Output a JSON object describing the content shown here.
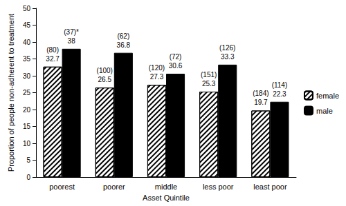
{
  "chart_data": {
    "type": "bar",
    "x_label": "Asset Quintile",
    "y_label": "Proportion of people non-adherent to treatment",
    "categories": [
      "poorest",
      "poorer",
      "middle",
      "less poor",
      "least poor"
    ],
    "series": [
      {
        "name": "female",
        "color": "#ffffff",
        "values": [
          32.7,
          26.5,
          27.3,
          25.3,
          19.7
        ],
        "count_labels": [
          "(80)",
          "(100)",
          "(120)",
          "(151)",
          "(184)"
        ]
      },
      {
        "name": "male",
        "color": "#000000",
        "values": [
          38,
          36.8,
          30.6,
          33.3,
          22.3
        ],
        "count_labels": [
          "(37)*",
          "(62)",
          "(72)",
          "(126)",
          "(114)"
        ]
      }
    ],
    "ylim": [
      0,
      50
    ],
    "yticks": [
      0,
      5,
      10,
      15,
      20,
      25,
      30,
      35,
      40,
      45,
      50
    ],
    "grid": false,
    "legend": "right",
    "data_labels": true
  }
}
